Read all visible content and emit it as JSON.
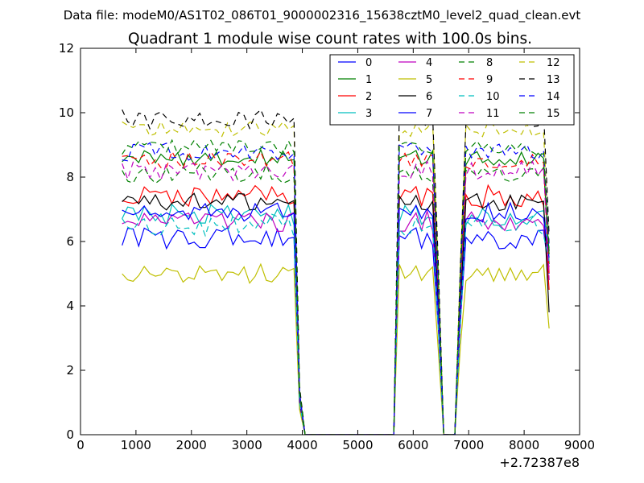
{
  "chart_data": {
    "type": "line",
    "suptitle": "Data file: modeM0/AS1T02_086T01_9000002316_15638cztM0_level2_quad_clean.evt",
    "title": "Quadrant 1 module wise count rates with 100.0s bins.",
    "xlim": [
      0,
      9000
    ],
    "ylim": [
      0,
      12
    ],
    "xticks": [
      0,
      1000,
      2000,
      3000,
      4000,
      5000,
      6000,
      7000,
      8000,
      9000
    ],
    "yticks": [
      0,
      2,
      4,
      6,
      8,
      10,
      12
    ],
    "x_offset_label": "+2.72387e8",
    "grid": false,
    "legend": {
      "placement": "top-right",
      "columns": 4
    },
    "bins": {
      "start": 750,
      "step": 100,
      "count": 78
    },
    "segments": [
      {
        "from": 750,
        "to": 3850,
        "level": 1.0
      },
      {
        "from": 3950,
        "to": 3950,
        "level": 0.15
      },
      {
        "from": 4050,
        "to": 5650,
        "level": 0.0
      },
      {
        "from": 5750,
        "to": 6350,
        "level": 1.0
      },
      {
        "from": 6450,
        "to": 6450,
        "level": 0.55
      },
      {
        "from": 6550,
        "to": 6750,
        "level": 0.0
      },
      {
        "from": 6850,
        "to": 6850,
        "level": 0.55
      },
      {
        "from": 6950,
        "to": 8450,
        "level": 1.0
      }
    ],
    "series": [
      {
        "name": "0",
        "color": "#0000ff",
        "dash": "solid",
        "mean": 6.1,
        "noise": 0.35,
        "end": 5.0
      },
      {
        "name": "1",
        "color": "#008000",
        "dash": "solid",
        "mean": 8.6,
        "noise": 0.25,
        "end": 5.3
      },
      {
        "name": "2",
        "color": "#ff0000",
        "dash": "solid",
        "mean": 7.4,
        "noise": 0.35,
        "end": 4.5
      },
      {
        "name": "3",
        "color": "#00bfbf",
        "dash": "solid",
        "mean": 6.8,
        "noise": 0.35,
        "end": 5.8
      },
      {
        "name": "4",
        "color": "#bf00bf",
        "dash": "solid",
        "mean": 6.6,
        "noise": 0.35,
        "end": 5.2
      },
      {
        "name": "5",
        "color": "#bfbf00",
        "dash": "solid",
        "mean": 5.0,
        "noise": 0.3,
        "end": 3.3
      },
      {
        "name": "6",
        "color": "#000000",
        "dash": "solid",
        "mean": 7.2,
        "noise": 0.3,
        "end": 3.8
      },
      {
        "name": "7",
        "color": "#0000ff",
        "dash": "solid",
        "mean": 6.9,
        "noise": 0.3,
        "end": 5.5
      },
      {
        "name": "8",
        "color": "#008000",
        "dash": "dashed",
        "mean": 8.1,
        "noise": 0.3,
        "end": 5.6
      },
      {
        "name": "9",
        "color": "#ff0000",
        "dash": "dashed",
        "mean": 8.5,
        "noise": 0.3,
        "end": 5.0
      },
      {
        "name": "10",
        "color": "#00bfbf",
        "dash": "dashed",
        "mean": 6.5,
        "noise": 0.35,
        "end": 5.4
      },
      {
        "name": "11",
        "color": "#bf00bf",
        "dash": "dashed",
        "mean": 8.2,
        "noise": 0.3,
        "end": 4.8
      },
      {
        "name": "12",
        "color": "#bfbf00",
        "dash": "dashed",
        "mean": 9.5,
        "noise": 0.25,
        "end": 6.0
      },
      {
        "name": "13",
        "color": "#000000",
        "dash": "dashed",
        "mean": 9.8,
        "noise": 0.3,
        "end": 6.2
      },
      {
        "name": "14",
        "color": "#0000ff",
        "dash": "dashed",
        "mean": 8.8,
        "noise": 0.3,
        "end": 5.9
      },
      {
        "name": "15",
        "color": "#008000",
        "dash": "dashed",
        "mean": 8.9,
        "noise": 0.25,
        "end": 5.7
      }
    ]
  }
}
